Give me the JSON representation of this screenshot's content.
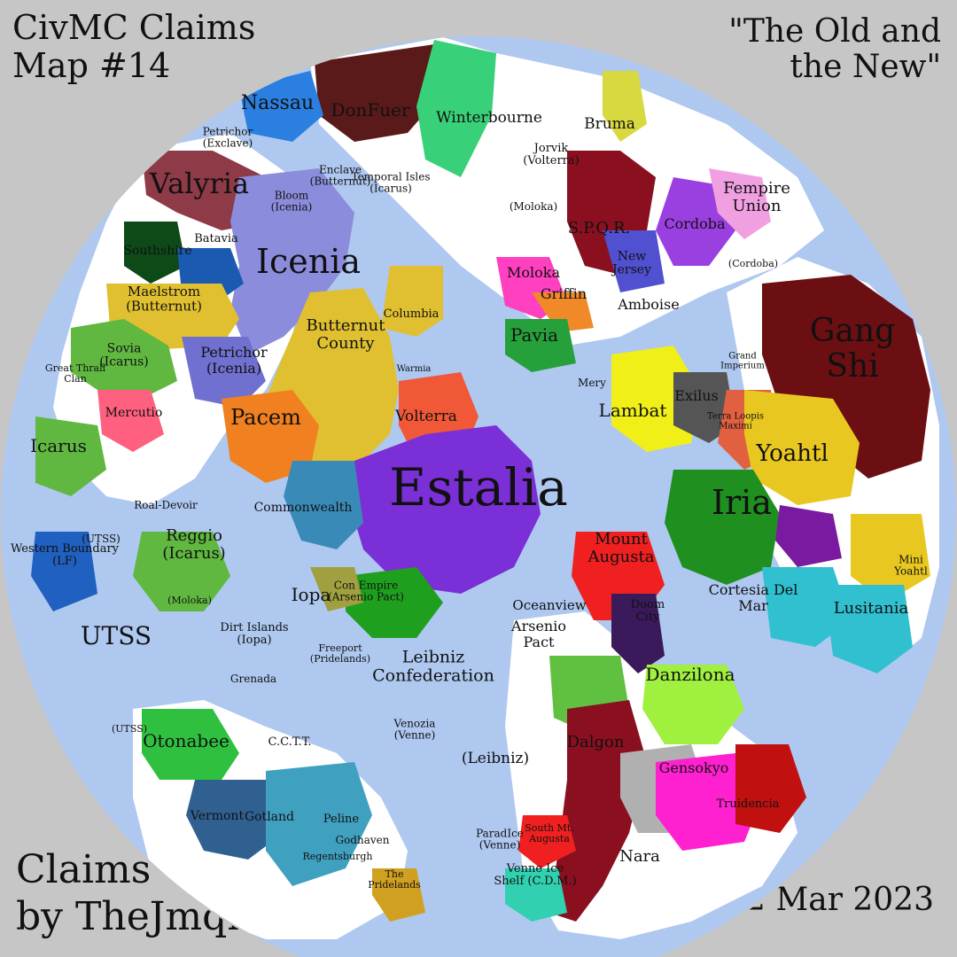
{
  "title": {
    "line1": "CivMC Claims",
    "line2": "Map #14"
  },
  "subtitle": {
    "line1": "\"The Old and",
    "line2": "the New\""
  },
  "credit": {
    "line1": "Claims",
    "line2": "by TheJmqn"
  },
  "date": "12 Mar 2023",
  "colors": {
    "ocean": "#aec8f0",
    "background": "#c6c6c6",
    "land": "#ffffff"
  },
  "labels": [
    {
      "id": "estalia",
      "text": "Estalia",
      "color": "#7b2fd6"
    },
    {
      "id": "icenia",
      "text": "Icenia",
      "color": "#8c8cdc"
    },
    {
      "id": "valyria",
      "text": "Valyria",
      "color": "#8e3a47"
    },
    {
      "id": "nassau",
      "text": "Nassau",
      "color": "#2a7fe0"
    },
    {
      "id": "donfuer",
      "text": "DonFuer",
      "color": "#5a1a1a"
    },
    {
      "id": "winterbourne",
      "text": "Winterbourne",
      "color": "#38d078"
    },
    {
      "id": "bruma",
      "text": "Bruma",
      "color": "#d8d840"
    },
    {
      "id": "fempire-union",
      "text": "Fempire Union",
      "color": "#d84fc8"
    },
    {
      "id": "gang-shi",
      "text": "Gang Shi",
      "color": "#6b0f12"
    },
    {
      "id": "yoahtl",
      "text": "Yoahtl",
      "color": "#e8c820"
    },
    {
      "id": "iria",
      "text": "Iria",
      "color": "#1f8f1f"
    },
    {
      "id": "lambat",
      "text": "Lambat",
      "color": "#f0f018"
    },
    {
      "id": "exilus",
      "text": "Exilus",
      "color": "#555555"
    },
    {
      "id": "pavia",
      "text": "Pavia",
      "color": "#26a03a"
    },
    {
      "id": "griffin",
      "text": "Griffin",
      "color": "#f08a28"
    },
    {
      "id": "moloka",
      "text": "Moloka",
      "color": "#ff40c0"
    },
    {
      "id": "amboise",
      "text": "Amboise",
      "color": "#7a3030"
    },
    {
      "id": "spqr",
      "text": "S.P.Q.R.",
      "color": "#8a1020"
    },
    {
      "id": "cordoba",
      "text": "Cordoba",
      "color": "#9b40e0"
    },
    {
      "id": "butternut-county",
      "text": "Butternut County",
      "color": "#e0c030"
    },
    {
      "id": "pacem",
      "text": "Pacem",
      "color": "#f08020"
    },
    {
      "id": "volterra",
      "text": "Volterra",
      "color": "#f05838"
    },
    {
      "id": "mercutio",
      "text": "Mercutio",
      "color": "#ff6080"
    },
    {
      "id": "icarus",
      "text": "Icarus",
      "color": "#60b840"
    },
    {
      "id": "petrichor-icenia",
      "text": "Petrichor (Icenia)",
      "color": "#7070d0"
    },
    {
      "id": "maelstrom-butternut",
      "text": "Maelstrom (Butternut)",
      "color": "#e0c030"
    },
    {
      "id": "sovia-icarus",
      "text": "Sovia (Icarus)",
      "color": "#60b840"
    },
    {
      "id": "southshire",
      "text": "Southshire",
      "color": "#0e4a18"
    },
    {
      "id": "batavia",
      "text": "Batavia",
      "color": "#1a5ab0"
    },
    {
      "id": "commonwealth",
      "text": "Commonwealth",
      "color": "#3a8ab8"
    },
    {
      "id": "reggio-icarus",
      "text": "Reggio (Icarus)",
      "color": "#60b840"
    },
    {
      "id": "utss",
      "text": "UTSS",
      "color": "#aec8f0"
    },
    {
      "id": "iopa",
      "text": "Iopa",
      "color": "#a0a040"
    },
    {
      "id": "con-empire",
      "text": "Con Empire (Arsenio Pact)",
      "color": "#1ea01e"
    },
    {
      "id": "mount-augusta",
      "text": "Mount Augusta",
      "color": "#f02020"
    },
    {
      "id": "oceanview",
      "text": "Oceanview",
      "color": "#aec8f0"
    },
    {
      "id": "doom-city",
      "text": "Doom City",
      "color": "#3a1a5a"
    },
    {
      "id": "cortesia-del-mar",
      "text": "Cortesia Del Mar",
      "color": "#30c0d0"
    },
    {
      "id": "lusitania",
      "text": "Lusitania",
      "color": "#30c0d0"
    },
    {
      "id": "mini-yoahtl",
      "text": "Mini Yoahtl",
      "color": "#e8c820"
    },
    {
      "id": "danzilona",
      "text": "Danzilona",
      "color": "#a0f040"
    },
    {
      "id": "arsenio-pact",
      "text": "Arsenio Pact",
      "color": "#1ea01e"
    },
    {
      "id": "leibniz-confederation",
      "text": "Leibniz Confederation",
      "color": "#aec8f0"
    },
    {
      "id": "leibniz",
      "text": "(Leibniz)",
      "color": "#aec8f0"
    },
    {
      "id": "dalgon",
      "text": "Dalgon",
      "color": "#8a1020"
    },
    {
      "id": "gensokyo",
      "text": "Gensokyo",
      "color": "#ff20d0"
    },
    {
      "id": "truidencia",
      "text": "Truidencia",
      "color": "#c01010"
    },
    {
      "id": "nara",
      "text": "Nara",
      "color": "#b0b0b0"
    },
    {
      "id": "otonabee",
      "text": "Otonabee",
      "color": "#30c040"
    },
    {
      "id": "cctt",
      "text": "C.C.T.T.",
      "color": "#1a8a6a"
    },
    {
      "id": "gotland",
      "text": "Gotland",
      "color": "#306090"
    },
    {
      "id": "vermont",
      "text": "Vermont",
      "color": "#4060a0"
    },
    {
      "id": "peline",
      "text": "Peline",
      "color": "#40a0c0"
    },
    {
      "id": "godhaven",
      "text": "Godhaven",
      "color": "#50a0e0"
    },
    {
      "id": "regentsburgh",
      "text": "Regentsburgh",
      "color": "#1a5a7a"
    },
    {
      "id": "the-pridelands",
      "text": "The Pridelands",
      "color": "#d0a020"
    },
    {
      "id": "paradice",
      "text": "ParadIce (Venne)",
      "color": "#30d0b0"
    },
    {
      "id": "venne",
      "text": "Venne Ice Shelf (C.D.M.)",
      "color": "#30d0b0"
    },
    {
      "id": "south-mt-augusta",
      "text": "South Mt. Augusta",
      "color": "#f02020"
    },
    {
      "id": "venozia",
      "text": "Venozia (Venne)",
      "color": "#30d0b0"
    },
    {
      "id": "dirt-islands",
      "text": "Dirt Islands (Iopa)",
      "color": "#a0a040"
    },
    {
      "id": "freeport",
      "text": "Freeport (Pridelands)",
      "color": "#d0a020"
    },
    {
      "id": "grenada",
      "text": "Grenada",
      "color": "#aec8f0"
    },
    {
      "id": "western-boundary",
      "text": "Western Boundary (LF)",
      "color": "#2060c0"
    },
    {
      "id": "utss-west",
      "text": "(UTSS)",
      "color": "#aec8f0"
    },
    {
      "id": "utss-sw",
      "text": "(UTSS)",
      "color": "#aec8f0"
    },
    {
      "id": "roal-devoir",
      "text": "Roal-Devoir",
      "color": "#2a2a2a"
    },
    {
      "id": "petrichor-exclave",
      "text": "Petrichor (Exclave)",
      "color": "#7070d0"
    },
    {
      "id": "bloom-icenia",
      "text": "Bloom (Icenia)",
      "color": "#8c8cdc"
    },
    {
      "id": "enclave-butternut",
      "text": "Enclave (Butternut)",
      "color": "#e0c030"
    },
    {
      "id": "temporal-isles",
      "text": "Temporal Isles (Icarus)",
      "color": "#60b840"
    },
    {
      "id": "jorvik",
      "text": "Jorvik (Volterra)",
      "color": "#f05838"
    },
    {
      "id": "new-jersey",
      "text": "New Jersey",
      "color": "#5050d0"
    },
    {
      "id": "columbia",
      "text": "Columbia",
      "color": "#e0c030"
    },
    {
      "id": "great-thrall",
      "text": "Great Thrall Clan",
      "color": "#8a3a2a"
    },
    {
      "id": "moloka-north",
      "text": "(Moloka)",
      "color": "#ff40c0"
    },
    {
      "id": "cordoba-small",
      "text": "(Cordoba)",
      "color": "#9b40e0"
    },
    {
      "id": "moloka-sw",
      "text": "(Moloka)",
      "color": "#ff40c0"
    },
    {
      "id": "mery",
      "text": "Mery",
      "color": "#a05020"
    },
    {
      "id": "warmia",
      "text": "Warmia",
      "color": "#aec8f0"
    },
    {
      "id": "g-imperium",
      "text": "Grand Imperium",
      "color": "#8080e0"
    },
    {
      "id": "terra-loopis",
      "text": "Terra Loopis Maximi",
      "color": "#e06040"
    }
  ]
}
